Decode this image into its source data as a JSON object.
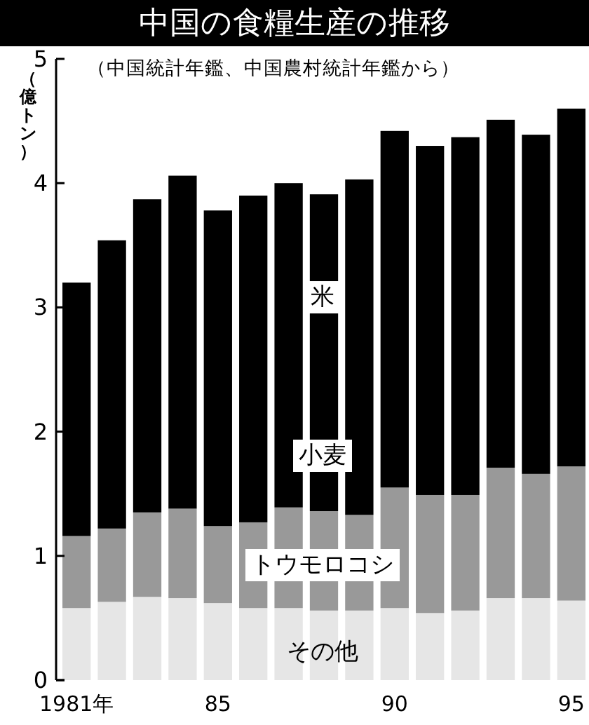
{
  "chart_data": {
    "type": "bar",
    "title": "中国の食糧生産の推移",
    "subtitle": "（中国統計年鑑、中国農村統計年鑑から）",
    "ylabel": "（億トン）",
    "categories": [
      "1981年",
      null,
      null,
      null,
      "85",
      null,
      null,
      null,
      null,
      "90",
      null,
      null,
      null,
      null,
      "95"
    ],
    "stacked": true,
    "ylim": [
      0,
      5
    ],
    "yticks": [
      0,
      1,
      2,
      3,
      4,
      5
    ],
    "series": [
      {
        "name": "その他",
        "color": "#e6e6e6",
        "values": [
          0.58,
          0.63,
          0.67,
          0.66,
          0.62,
          0.58,
          0.58,
          0.56,
          0.56,
          0.58,
          0.54,
          0.56,
          0.66,
          0.66,
          0.64
        ]
      },
      {
        "name": "トウモロコシ",
        "color": "#999999",
        "values": [
          0.58,
          0.59,
          0.68,
          0.72,
          0.62,
          0.69,
          0.81,
          0.8,
          0.77,
          0.97,
          0.95,
          0.93,
          1.05,
          1.0,
          1.08
        ]
      },
      {
        "color": "#000000",
        "values": [
          2.04,
          2.32,
          2.52,
          2.68,
          2.54,
          2.63,
          2.61,
          2.55,
          2.7,
          2.87,
          2.81,
          2.88,
          2.8,
          2.73,
          2.88
        ]
      }
    ],
    "annotations": [
      "米",
      "小麦"
    ]
  }
}
